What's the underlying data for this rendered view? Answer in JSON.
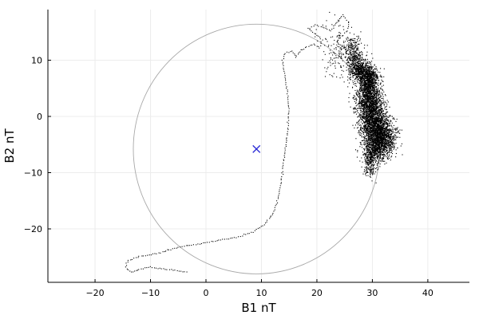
{
  "chart_data": {
    "type": "scatter",
    "title": "",
    "xlabel": "B1 nT",
    "ylabel": "B2 nT",
    "xlim": [
      -28.5,
      47.5
    ],
    "ylim": [
      -29.5,
      19
    ],
    "xticks": [
      -20,
      -10,
      0,
      10,
      20,
      30,
      40
    ],
    "yticks": [
      -20,
      -10,
      0,
      10
    ],
    "grid": true,
    "legend": "none",
    "colors": {
      "points": "#000000",
      "circle": "#a8a8a8",
      "center": "#2b2bd6",
      "grid": "#ececec",
      "axis": "#000000"
    },
    "center_marker": {
      "x": 9.1,
      "y": -5.8,
      "symbol": "x"
    },
    "circle": {
      "cx": 9.1,
      "cy": -5.8,
      "r": 22.2
    },
    "trajectory_path": [
      [
        -3.5,
        -27.6
      ],
      [
        -8,
        -27.1
      ],
      [
        -10,
        -26.8
      ],
      [
        -12,
        -27.2
      ],
      [
        -13.5,
        -27.7
      ],
      [
        -14.5,
        -26.8
      ],
      [
        -14,
        -25.6
      ],
      [
        -12,
        -24.9
      ],
      [
        -8.5,
        -24.3
      ],
      [
        -5,
        -23.3
      ],
      [
        -1.5,
        -22.7
      ],
      [
        2,
        -22.1
      ],
      [
        5.5,
        -21.5
      ],
      [
        8.5,
        -20.5
      ],
      [
        10.5,
        -19.2
      ],
      [
        12,
        -17.5
      ],
      [
        12.9,
        -15
      ],
      [
        13.5,
        -12
      ],
      [
        13.9,
        -9
      ],
      [
        14.3,
        -6
      ],
      [
        14.7,
        -3
      ],
      [
        14.9,
        0
      ],
      [
        14.9,
        2
      ],
      [
        14.7,
        4
      ],
      [
        14.4,
        6
      ],
      [
        14.1,
        8
      ],
      [
        13.8,
        10
      ],
      [
        14.3,
        11.3
      ],
      [
        15.6,
        11.6
      ],
      [
        16.2,
        10.5
      ],
      [
        16.9,
        11.5
      ],
      [
        18.2,
        12.4
      ],
      [
        19.5,
        12.8
      ],
      [
        20.5,
        12.2
      ],
      [
        21,
        13.6
      ],
      [
        19.5,
        14.8
      ],
      [
        18.5,
        15.6
      ],
      [
        19.7,
        16.2
      ],
      [
        21,
        15.9
      ],
      [
        22.5,
        15.3
      ],
      [
        23.3,
        16.3
      ],
      [
        23.9,
        17.2
      ],
      [
        24.7,
        18
      ],
      [
        25.8,
        16.6
      ],
      [
        25.5,
        15.3
      ],
      [
        24.5,
        14.2
      ],
      [
        23.6,
        13.3
      ],
      [
        24.6,
        12.4
      ],
      [
        26.1,
        12.2
      ],
      [
        27,
        11
      ],
      [
        26.4,
        9.5
      ],
      [
        27,
        8.7
      ],
      [
        28.3,
        8.3
      ],
      [
        29.2,
        7.2
      ]
    ],
    "cloud_clusters": [
      {
        "cx": 24,
        "cy": 11.5,
        "sx": 1.6,
        "sy": 2.5,
        "n": 160
      },
      {
        "cx": 26.8,
        "cy": 11,
        "sx": 0.8,
        "sy": 1.6,
        "n": 320
      },
      {
        "cx": 27.8,
        "cy": 8,
        "sx": 0.9,
        "sy": 0.9,
        "n": 420
      },
      {
        "cx": 29.3,
        "cy": 6.5,
        "sx": 0.9,
        "sy": 1.4,
        "n": 760
      },
      {
        "cx": 29.4,
        "cy": 3.2,
        "sx": 1.1,
        "sy": 1.5,
        "n": 860
      },
      {
        "cx": 30,
        "cy": 0,
        "sx": 1.2,
        "sy": 1.7,
        "n": 960
      },
      {
        "cx": 31,
        "cy": -2.6,
        "sx": 1.4,
        "sy": 1.6,
        "n": 1000
      },
      {
        "cx": 31.8,
        "cy": -4.3,
        "sx": 1.2,
        "sy": 1.4,
        "n": 720
      },
      {
        "cx": 30.2,
        "cy": -6.3,
        "sx": 1.1,
        "sy": 1.2,
        "n": 440
      },
      {
        "cx": 29.6,
        "cy": -8.5,
        "sx": 0.6,
        "sy": 1.2,
        "n": 170
      }
    ]
  }
}
